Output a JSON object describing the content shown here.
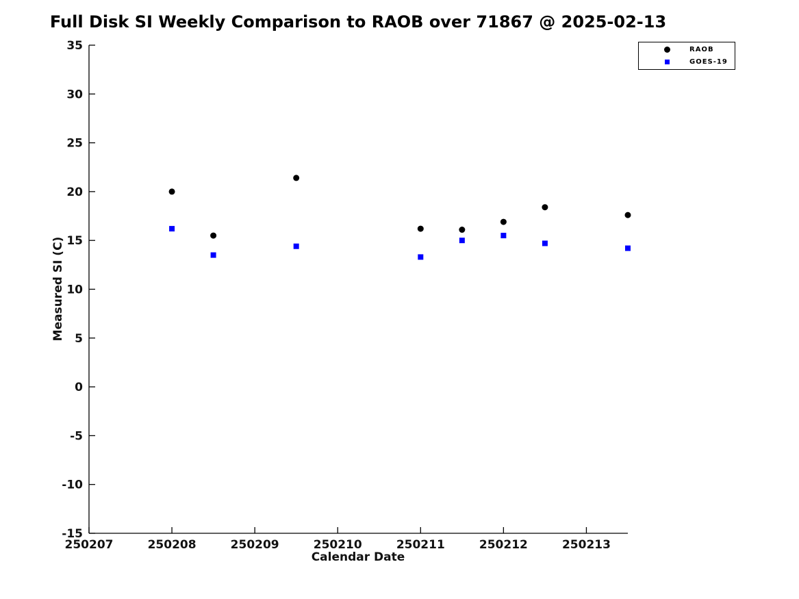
{
  "chart_data": {
    "type": "scatter",
    "title": "Full Disk SI Weekly Comparison to RAOB over 71867 @ 2025-02-13",
    "xlabel": "Calendar Date",
    "ylabel": "Measured SI (C)",
    "xlim": [
      250207,
      250213.5
    ],
    "ylim": [
      -15,
      35
    ],
    "x_ticks": [
      250207,
      250208,
      250209,
      250210,
      250211,
      250212,
      250213
    ],
    "y_ticks": [
      35,
      30,
      25,
      20,
      15,
      10,
      5,
      0,
      -5,
      -10,
      -15
    ],
    "grid": false,
    "legend_position": "top-right",
    "background_color": "#ffffff",
    "axis_color": "#000000",
    "tick_label_color": "#111111",
    "series": [
      {
        "name": "RAOB",
        "marker": "circle",
        "color": "#000000",
        "x": [
          250208,
          250208.5,
          250209.5,
          250211,
          250211.5,
          250212,
          250212.5,
          250213.5
        ],
        "y": [
          20.0,
          15.5,
          21.4,
          16.2,
          16.1,
          16.9,
          18.4,
          17.6
        ]
      },
      {
        "name": "GOES-19",
        "marker": "square",
        "color": "#0000ff",
        "x": [
          250208,
          250208.5,
          250209.5,
          250211,
          250211.5,
          250212,
          250212.5,
          250213.5
        ],
        "y": [
          16.2,
          13.5,
          14.4,
          13.3,
          15.0,
          15.5,
          14.7,
          14.2
        ]
      }
    ]
  }
}
